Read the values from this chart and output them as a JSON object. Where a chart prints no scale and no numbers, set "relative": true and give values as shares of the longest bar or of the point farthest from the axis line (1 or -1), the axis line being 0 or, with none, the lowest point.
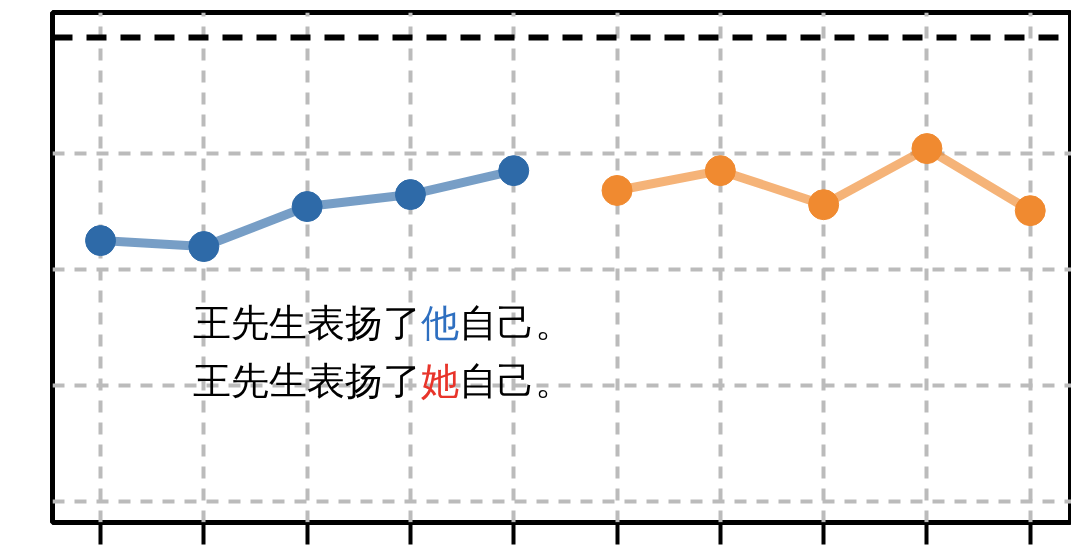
{
  "chart_data": {
    "type": "line",
    "relative": true,
    "categories": [
      null,
      null,
      null,
      null,
      null,
      null,
      null,
      null,
      null,
      null
    ],
    "series": [
      {
        "color": "#2e6aa8",
        "values": [
          0.754,
          0.738,
          0.845,
          0.877,
          0.941,
          null,
          null,
          null,
          null,
          null
        ]
      },
      {
        "color": "#f08a30",
        "values": [
          null,
          null,
          null,
          null,
          null,
          0.888,
          0.941,
          0.85,
          1.0,
          0.834
        ]
      }
    ],
    "ref_lines": [
      {
        "axis": "y",
        "value": 1.297,
        "color": "#000000",
        "line_style": "dashed"
      }
    ],
    "annotations": [
      "王先生表扬了他自己。",
      "王先生表扬了她自己。"
    ],
    "grid": true,
    "marker": "circle",
    "line_style": "solid"
  }
}
